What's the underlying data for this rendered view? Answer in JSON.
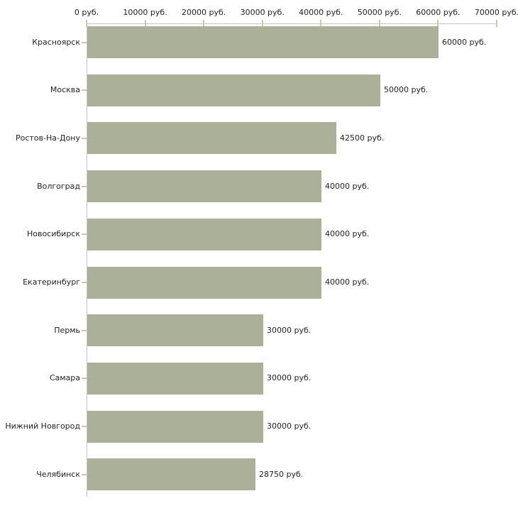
{
  "chart_data": {
    "type": "bar",
    "orientation": "horizontal",
    "title": "",
    "xlabel": "",
    "ylabel": "",
    "grid": false,
    "legend": false,
    "xlim": [
      0,
      70000
    ],
    "x_axis_position": "top",
    "unit_suffix": "руб.",
    "categories": [
      "Красноярск",
      "Москва",
      "Ростов-На-Дону",
      "Волгоград",
      "Новосибирск",
      "Екатеринбург",
      "Пермь",
      "Самара",
      "Нижний Новгород",
      "Челябинск"
    ],
    "values": [
      60000,
      50000,
      42500,
      40000,
      40000,
      40000,
      30000,
      30000,
      30000,
      28750
    ],
    "value_labels": [
      "60000 руб.",
      "50000 руб.",
      "42500 руб.",
      "40000 руб.",
      "40000 руб.",
      "40000 руб.",
      "30000 руб.",
      "30000 руб.",
      "30000 руб.",
      "28750 руб."
    ],
    "x_ticks": [
      {
        "value": 0,
        "label": "0 руб."
      },
      {
        "value": 10000,
        "label": "10000 руб."
      },
      {
        "value": 20000,
        "label": "20000 руб."
      },
      {
        "value": 30000,
        "label": "30000 руб."
      },
      {
        "value": 40000,
        "label": "40000 руб."
      },
      {
        "value": 50000,
        "label": "50000 руб."
      },
      {
        "value": 60000,
        "label": "60000 руб."
      },
      {
        "value": 70000,
        "label": "70000 руб."
      }
    ],
    "colors": {
      "bar": "#abb198",
      "axis": "#c5c5c5",
      "tick": "#c9c9a3",
      "text": "#1f1f1f",
      "background": "#ffffff"
    }
  }
}
